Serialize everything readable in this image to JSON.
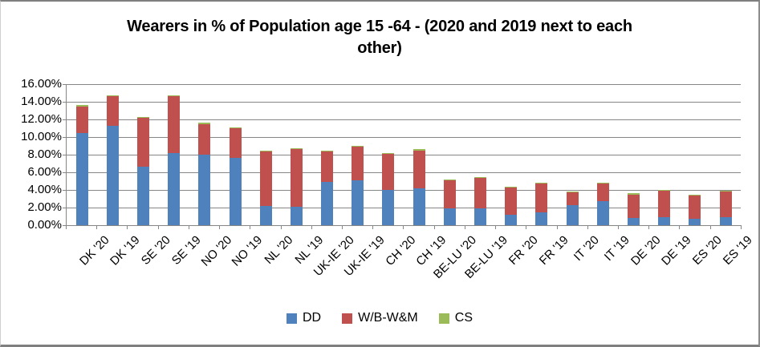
{
  "chart_data": {
    "type": "bar",
    "stacked": true,
    "title": "Wearers in % of Population age 15 -64 - (2020 and 2019 next to each other)",
    "title_lines": [
      "Wearers in % of Population age 15 -64 - (2020 and 2019 next to each",
      "other)"
    ],
    "categories": [
      "DK '20",
      "DK '19",
      "SE '20",
      "SE '19",
      "NO '20",
      "NO '19",
      "NL '20",
      "NL '19",
      "UK-IE '20",
      "UK-IE '19",
      "CH '20",
      "CH '19",
      "BE-LU '20",
      "BE-LU '19",
      "FR '20",
      "FR '19",
      "IT '20",
      "IT '19",
      "DE '20",
      "DE '19",
      "ES '20",
      "ES '19"
    ],
    "series": [
      {
        "name": "DD",
        "color": "#4F81BD",
        "values": [
          10.5,
          11.3,
          6.6,
          8.2,
          8.0,
          7.6,
          2.2,
          2.1,
          4.9,
          5.1,
          4.0,
          4.2,
          1.9,
          1.9,
          1.2,
          1.5,
          2.3,
          2.7,
          0.85,
          0.95,
          0.7,
          0.9
        ]
      },
      {
        "name": "W/B-W&M",
        "color": "#C0504D",
        "values": [
          3.0,
          3.3,
          5.6,
          6.4,
          3.5,
          3.4,
          6.2,
          6.5,
          3.5,
          3.8,
          4.1,
          4.3,
          3.2,
          3.5,
          3.1,
          3.2,
          1.4,
          2.0,
          2.65,
          2.95,
          2.7,
          2.9
        ]
      },
      {
        "name": "CS",
        "color": "#9BBB59",
        "values": [
          0.1,
          0.1,
          0.1,
          0.1,
          0.1,
          0.1,
          0.1,
          0.1,
          0.1,
          0.1,
          0.1,
          0.1,
          0.1,
          0.1,
          0.1,
          0.1,
          0.1,
          0.1,
          0.1,
          0.1,
          0.1,
          0.1
        ]
      }
    ],
    "ylim": [
      0,
      16
    ],
    "ytick_step": 2,
    "ytick_labels": [
      "0.00%",
      "2.00%",
      "4.00%",
      "6.00%",
      "8.00%",
      "10.00%",
      "12.00%",
      "14.00%",
      "16.00%"
    ],
    "grid": true,
    "legend_position": "bottom",
    "gridline_color": "#868686",
    "axis_color": "#868686",
    "text_color": "#000000",
    "background_color": "#FFFFFF"
  }
}
